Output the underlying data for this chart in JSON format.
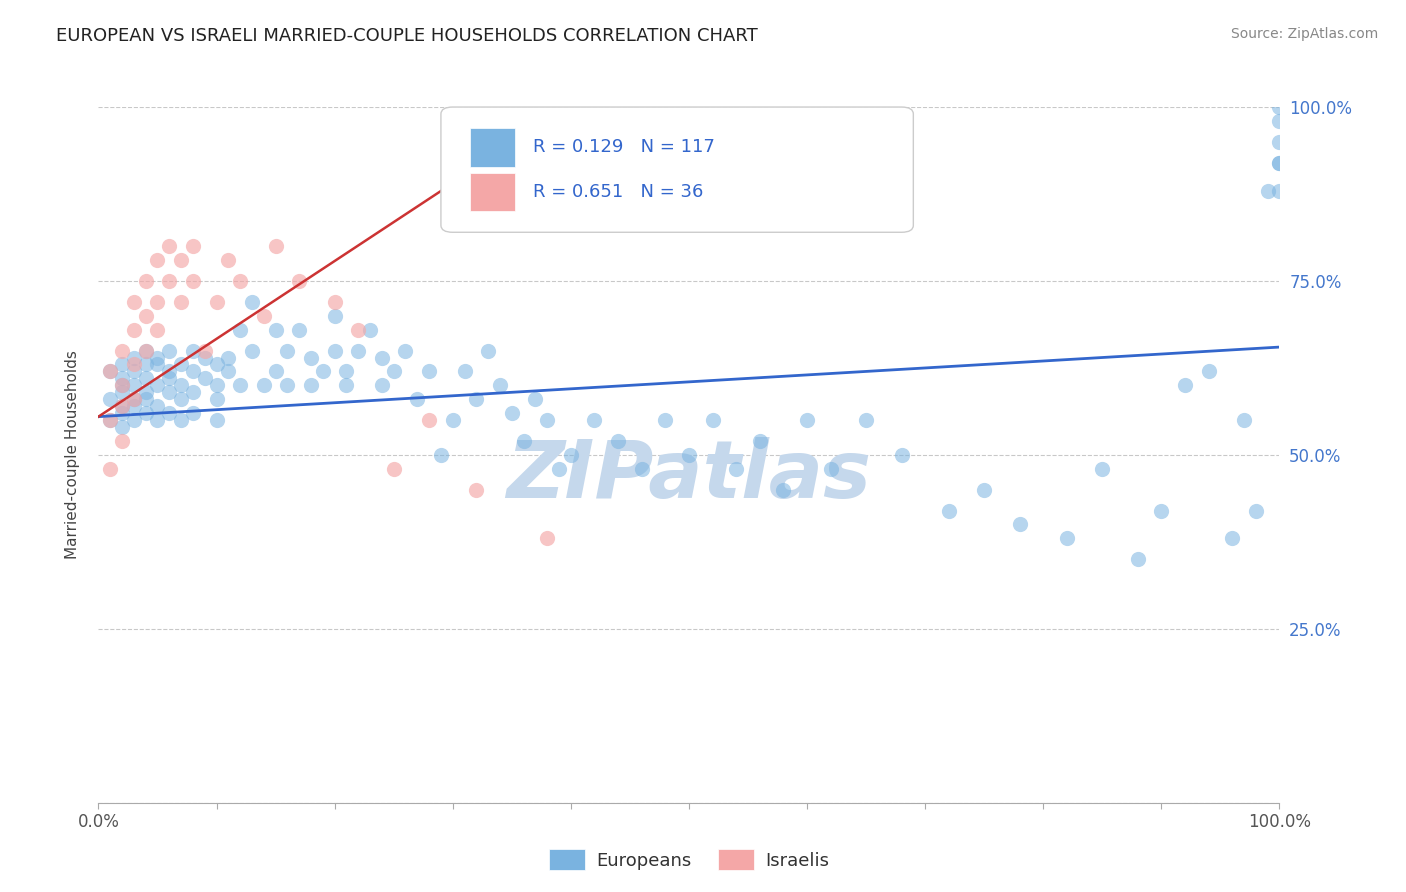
{
  "title": "EUROPEAN VS ISRAELI MARRIED-COUPLE HOUSEHOLDS CORRELATION CHART",
  "source_text": "Source: ZipAtlas.com",
  "ylabel": "Married-couple Households",
  "xlim": [
    0,
    1
  ],
  "ylim": [
    0,
    1
  ],
  "xtick_positions": [
    0.0,
    0.1,
    0.2,
    0.3,
    0.4,
    0.5,
    0.6,
    0.7,
    0.8,
    0.9,
    1.0
  ],
  "xticklabels": [
    "0.0%",
    "",
    "",
    "",
    "",
    "",
    "",
    "",
    "",
    "",
    "100.0%"
  ],
  "ytick_positions": [
    0.0,
    0.25,
    0.5,
    0.75,
    1.0
  ],
  "yticklabels_right": [
    "",
    "25.0%",
    "50.0%",
    "75.0%",
    "100.0%"
  ],
  "european_R": 0.129,
  "european_N": 117,
  "israeli_R": 0.651,
  "israeli_N": 36,
  "european_color": "#7ab3e0",
  "israeli_color": "#f4a7a7",
  "trendline_european_color": "#3366cc",
  "trendline_israeli_color": "#cc3333",
  "watermark_text": "ZIPatlas",
  "watermark_color": "#c5d8ec",
  "background_color": "#ffffff",
  "grid_color": "#bbbbbb",
  "legend_text_color": "#3366cc",
  "eu_trend_start_x": 0.0,
  "eu_trend_end_x": 1.0,
  "eu_trend_start_y": 0.555,
  "eu_trend_end_y": 0.655,
  "is_trend_start_x": 0.0,
  "is_trend_end_x": 0.38,
  "is_trend_start_y": 0.555,
  "is_trend_end_y": 0.98,
  "eu_x": [
    0.01,
    0.01,
    0.01,
    0.02,
    0.02,
    0.02,
    0.02,
    0.02,
    0.02,
    0.02,
    0.03,
    0.03,
    0.03,
    0.03,
    0.03,
    0.03,
    0.04,
    0.04,
    0.04,
    0.04,
    0.04,
    0.04,
    0.05,
    0.05,
    0.05,
    0.05,
    0.05,
    0.06,
    0.06,
    0.06,
    0.06,
    0.06,
    0.07,
    0.07,
    0.07,
    0.07,
    0.08,
    0.08,
    0.08,
    0.08,
    0.09,
    0.09,
    0.1,
    0.1,
    0.1,
    0.1,
    0.11,
    0.11,
    0.12,
    0.12,
    0.13,
    0.13,
    0.14,
    0.15,
    0.15,
    0.16,
    0.16,
    0.17,
    0.18,
    0.18,
    0.19,
    0.2,
    0.2,
    0.21,
    0.21,
    0.22,
    0.23,
    0.24,
    0.24,
    0.25,
    0.26,
    0.27,
    0.28,
    0.29,
    0.3,
    0.31,
    0.32,
    0.33,
    0.34,
    0.35,
    0.36,
    0.37,
    0.38,
    0.39,
    0.4,
    0.42,
    0.44,
    0.46,
    0.48,
    0.5,
    0.52,
    0.54,
    0.56,
    0.58,
    0.6,
    0.62,
    0.65,
    0.68,
    0.72,
    0.75,
    0.78,
    0.82,
    0.85,
    0.88,
    0.9,
    0.92,
    0.94,
    0.96,
    0.97,
    0.98,
    0.99,
    1.0,
    1.0,
    1.0,
    1.0,
    1.0,
    1.0
  ],
  "eu_y": [
    0.58,
    0.55,
    0.62,
    0.6,
    0.57,
    0.54,
    0.63,
    0.59,
    0.56,
    0.61,
    0.62,
    0.58,
    0.55,
    0.64,
    0.6,
    0.57,
    0.63,
    0.59,
    0.56,
    0.61,
    0.65,
    0.58,
    0.63,
    0.6,
    0.57,
    0.55,
    0.64,
    0.62,
    0.59,
    0.56,
    0.61,
    0.65,
    0.63,
    0.6,
    0.58,
    0.55,
    0.65,
    0.62,
    0.59,
    0.56,
    0.64,
    0.61,
    0.63,
    0.6,
    0.58,
    0.55,
    0.64,
    0.62,
    0.68,
    0.6,
    0.72,
    0.65,
    0.6,
    0.68,
    0.62,
    0.65,
    0.6,
    0.68,
    0.64,
    0.6,
    0.62,
    0.7,
    0.65,
    0.62,
    0.6,
    0.65,
    0.68,
    0.64,
    0.6,
    0.62,
    0.65,
    0.58,
    0.62,
    0.5,
    0.55,
    0.62,
    0.58,
    0.65,
    0.6,
    0.56,
    0.52,
    0.58,
    0.55,
    0.48,
    0.5,
    0.55,
    0.52,
    0.48,
    0.55,
    0.5,
    0.55,
    0.48,
    0.52,
    0.45,
    0.55,
    0.48,
    0.55,
    0.5,
    0.42,
    0.45,
    0.4,
    0.38,
    0.48,
    0.35,
    0.42,
    0.6,
    0.62,
    0.38,
    0.55,
    0.42,
    0.88,
    0.95,
    0.92,
    1.0,
    0.98,
    0.88,
    0.92
  ],
  "is_x": [
    0.01,
    0.01,
    0.01,
    0.02,
    0.02,
    0.02,
    0.02,
    0.03,
    0.03,
    0.03,
    0.03,
    0.04,
    0.04,
    0.04,
    0.05,
    0.05,
    0.05,
    0.06,
    0.06,
    0.07,
    0.07,
    0.08,
    0.08,
    0.09,
    0.1,
    0.11,
    0.12,
    0.14,
    0.15,
    0.17,
    0.2,
    0.22,
    0.25,
    0.28,
    0.32,
    0.38
  ],
  "is_y": [
    0.55,
    0.62,
    0.48,
    0.6,
    0.57,
    0.65,
    0.52,
    0.68,
    0.63,
    0.58,
    0.72,
    0.7,
    0.65,
    0.75,
    0.78,
    0.72,
    0.68,
    0.75,
    0.8,
    0.78,
    0.72,
    0.8,
    0.75,
    0.65,
    0.72,
    0.78,
    0.75,
    0.7,
    0.8,
    0.75,
    0.72,
    0.68,
    0.48,
    0.55,
    0.45,
    0.38
  ]
}
